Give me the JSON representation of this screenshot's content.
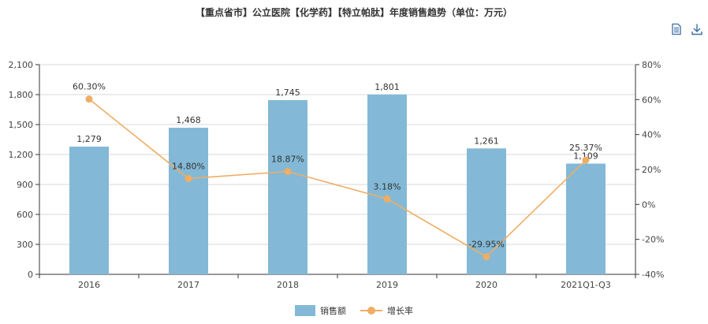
{
  "title": "【重点省市】公立医院【化学药】【特立帕肽】年度销售趋势（单位：万元）",
  "toolbar": {
    "data_view_icon": "document-icon",
    "download_icon": "download-icon"
  },
  "colors": {
    "bar": "#83b9d6",
    "line": "#f0ad63",
    "axis": "#333333",
    "grid": "#d9d9d9"
  },
  "chart_data": {
    "type": "bar",
    "title": "【重点省市】公立医院【化学药】【特立帕肽】年度销售趋势（单位：万元）",
    "categories": [
      "2016",
      "2017",
      "2018",
      "2019",
      "2020",
      "2021Q1-Q3"
    ],
    "series": [
      {
        "name": "销售额",
        "type": "bar",
        "axis": "left",
        "values": [
          1279,
          1468,
          1745,
          1801,
          1261,
          1109
        ],
        "labels": [
          "1,279",
          "1,468",
          "1,745",
          "1,801",
          "1,261",
          "1,109"
        ]
      },
      {
        "name": "增长率",
        "type": "line",
        "axis": "right",
        "values": [
          60.3,
          14.8,
          18.87,
          3.18,
          -29.95,
          25.37
        ],
        "labels": [
          "60.30%",
          "14.80%",
          "18.87%",
          "3.18%",
          "-29.95%",
          "25.37%"
        ]
      }
    ],
    "y_left": {
      "ylim": [
        0,
        2100
      ],
      "ticks": [
        0,
        300,
        600,
        900,
        1200,
        1500,
        1800,
        2100
      ],
      "tick_labels": [
        "0",
        "300",
        "600",
        "900",
        "1,200",
        "1,500",
        "1,800",
        "2,100"
      ]
    },
    "y_right": {
      "ylim": [
        -40,
        80
      ],
      "ticks": [
        -40,
        -20,
        0,
        20,
        40,
        60,
        80
      ],
      "tick_labels": [
        "-40%",
        "-20%",
        "0%",
        "20%",
        "40%",
        "60%",
        "80%"
      ]
    },
    "grid": true,
    "legend_position": "bottom"
  },
  "legend": {
    "bar_label": "销售额",
    "line_label": "增长率"
  }
}
